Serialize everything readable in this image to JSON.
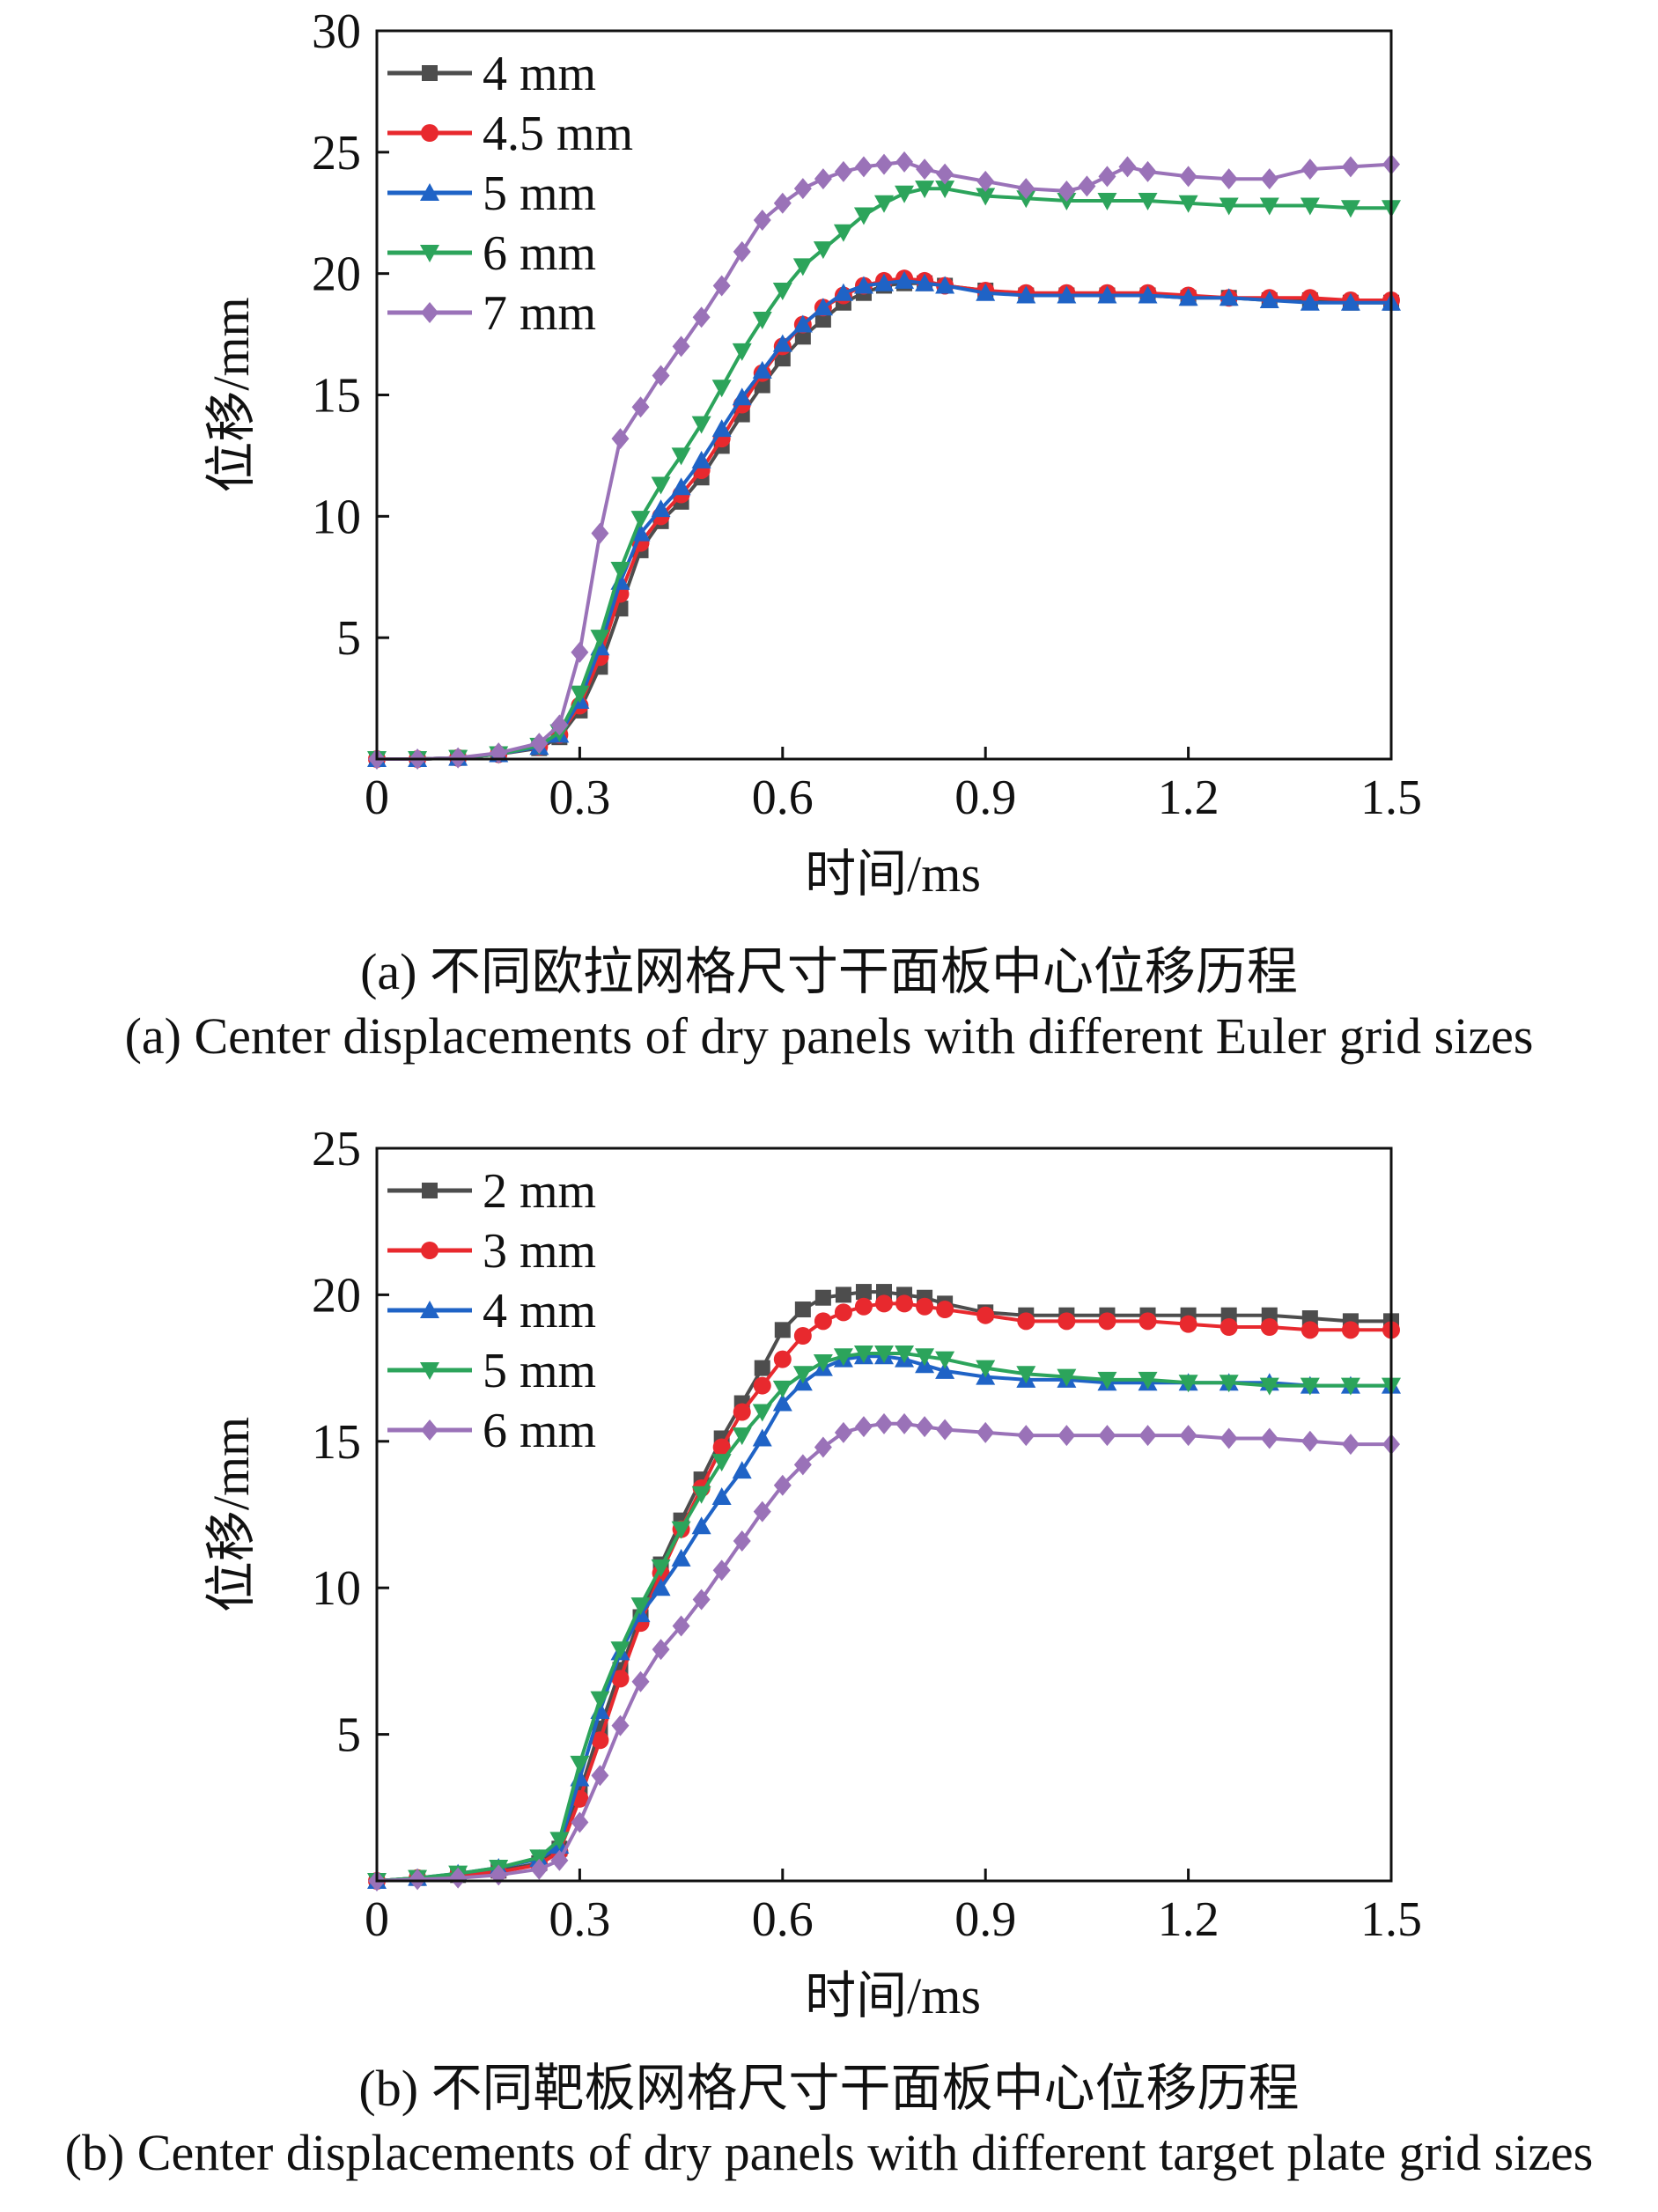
{
  "figures": [
    {
      "caption_cn": "(a) 不同欧拉网格尺寸干面板中心位移历程",
      "caption_en": "(a) Center displacements of dry panels with different Euler grid sizes"
    },
    {
      "caption_cn": "(b) 不同靶板网格尺寸干面板中心位移历程",
      "caption_en": "(b) Center displacements of dry panels with different target plate grid sizes"
    }
  ],
  "chart_data": [
    {
      "type": "line",
      "xlabel": "时间/ms",
      "ylabel": "位移/mm",
      "xlim": [
        0,
        1.5
      ],
      "ylim": [
        0,
        30
      ],
      "xticks": [
        0,
        0.3,
        0.6,
        0.9,
        1.2,
        1.5
      ],
      "xtick_labels": [
        "0",
        "0.3",
        "0.6",
        "0.9",
        "1.2",
        "1.5"
      ],
      "yticks": [
        0,
        5,
        10,
        15,
        20,
        25,
        30
      ],
      "ytick_labels": [
        "",
        "5",
        "10",
        "15",
        "20",
        "25",
        "30"
      ],
      "grid": false,
      "legend_position": "top-left",
      "series": [
        {
          "name": "4 mm",
          "color": "#4d4d4d",
          "marker": "square",
          "x": [
            0.0,
            0.06,
            0.12,
            0.18,
            0.24,
            0.27,
            0.3,
            0.33,
            0.36,
            0.39,
            0.42,
            0.45,
            0.48,
            0.51,
            0.54,
            0.57,
            0.6,
            0.63,
            0.66,
            0.69,
            0.72,
            0.75,
            0.78,
            0.81,
            0.84,
            0.9,
            0.96,
            1.02,
            1.08,
            1.14,
            1.2,
            1.26,
            1.32,
            1.38,
            1.44,
            1.5
          ],
          "y": [
            0.0,
            0.0,
            0.05,
            0.2,
            0.45,
            0.9,
            2.0,
            3.8,
            6.2,
            8.6,
            9.8,
            10.6,
            11.6,
            12.9,
            14.2,
            15.4,
            16.5,
            17.4,
            18.1,
            18.8,
            19.2,
            19.5,
            19.6,
            19.6,
            19.5,
            19.3,
            19.1,
            19.1,
            19.1,
            19.1,
            19.0,
            19.0,
            18.9,
            18.9,
            18.8,
            18.8
          ]
        },
        {
          "name": "4.5 mm",
          "color": "#e8292e",
          "marker": "circle",
          "x": [
            0.0,
            0.06,
            0.12,
            0.18,
            0.24,
            0.27,
            0.3,
            0.33,
            0.36,
            0.39,
            0.42,
            0.45,
            0.48,
            0.51,
            0.54,
            0.57,
            0.6,
            0.63,
            0.66,
            0.69,
            0.72,
            0.75,
            0.78,
            0.81,
            0.84,
            0.9,
            0.96,
            1.02,
            1.08,
            1.14,
            1.2,
            1.26,
            1.32,
            1.38,
            1.44,
            1.5
          ],
          "y": [
            0.0,
            0.0,
            0.05,
            0.2,
            0.5,
            1.0,
            2.2,
            4.2,
            6.8,
            8.9,
            10.0,
            10.9,
            11.9,
            13.2,
            14.6,
            15.9,
            17.0,
            17.9,
            18.6,
            19.1,
            19.5,
            19.7,
            19.8,
            19.7,
            19.5,
            19.3,
            19.2,
            19.2,
            19.2,
            19.2,
            19.1,
            19.0,
            19.0,
            19.0,
            18.9,
            18.9
          ]
        },
        {
          "name": "5 mm",
          "color": "#1f63c6",
          "marker": "triangle-up",
          "x": [
            0.0,
            0.06,
            0.12,
            0.18,
            0.24,
            0.27,
            0.3,
            0.33,
            0.36,
            0.39,
            0.42,
            0.45,
            0.48,
            0.51,
            0.54,
            0.57,
            0.6,
            0.63,
            0.66,
            0.69,
            0.72,
            0.75,
            0.78,
            0.81,
            0.84,
            0.9,
            0.96,
            1.02,
            1.08,
            1.14,
            1.2,
            1.26,
            1.32,
            1.38,
            1.44,
            1.5
          ],
          "y": [
            0.0,
            0.0,
            0.05,
            0.2,
            0.5,
            1.0,
            2.4,
            4.6,
            7.3,
            9.3,
            10.3,
            11.2,
            12.3,
            13.6,
            14.9,
            16.0,
            17.1,
            17.9,
            18.6,
            19.2,
            19.5,
            19.6,
            19.7,
            19.6,
            19.5,
            19.2,
            19.1,
            19.1,
            19.1,
            19.1,
            19.0,
            19.0,
            18.9,
            18.8,
            18.8,
            18.8
          ]
        },
        {
          "name": "6 mm",
          "color": "#2ca45b",
          "marker": "triangle-down",
          "x": [
            0.0,
            0.06,
            0.12,
            0.18,
            0.24,
            0.27,
            0.3,
            0.33,
            0.36,
            0.39,
            0.42,
            0.45,
            0.48,
            0.51,
            0.54,
            0.57,
            0.6,
            0.63,
            0.66,
            0.69,
            0.72,
            0.75,
            0.78,
            0.81,
            0.84,
            0.9,
            0.96,
            1.02,
            1.08,
            1.14,
            1.2,
            1.26,
            1.32,
            1.38,
            1.44,
            1.5
          ],
          "y": [
            0.0,
            0.0,
            0.05,
            0.2,
            0.55,
            1.1,
            2.7,
            5.0,
            7.8,
            9.9,
            11.3,
            12.5,
            13.8,
            15.3,
            16.8,
            18.1,
            19.3,
            20.3,
            21.0,
            21.7,
            22.4,
            22.9,
            23.3,
            23.5,
            23.5,
            23.2,
            23.1,
            23.0,
            23.0,
            23.0,
            22.9,
            22.8,
            22.8,
            22.8,
            22.7,
            22.7
          ]
        },
        {
          "name": "7 mm",
          "color": "#9a72b8",
          "marker": "diamond",
          "x": [
            0.0,
            0.06,
            0.12,
            0.18,
            0.24,
            0.27,
            0.3,
            0.33,
            0.36,
            0.39,
            0.42,
            0.45,
            0.48,
            0.51,
            0.54,
            0.57,
            0.6,
            0.63,
            0.66,
            0.69,
            0.72,
            0.75,
            0.78,
            0.81,
            0.84,
            0.9,
            0.96,
            1.02,
            1.05,
            1.08,
            1.11,
            1.14,
            1.2,
            1.26,
            1.32,
            1.38,
            1.44,
            1.5
          ],
          "y": [
            0.0,
            0.0,
            0.05,
            0.25,
            0.65,
            1.4,
            4.4,
            9.3,
            13.2,
            14.5,
            15.8,
            17.0,
            18.2,
            19.5,
            20.9,
            22.2,
            22.9,
            23.5,
            23.9,
            24.2,
            24.4,
            24.5,
            24.6,
            24.3,
            24.1,
            23.8,
            23.5,
            23.4,
            23.6,
            24.0,
            24.4,
            24.2,
            24.0,
            23.9,
            23.9,
            24.3,
            24.4,
            24.5
          ]
        }
      ]
    },
    {
      "type": "line",
      "xlabel": "时间/ms",
      "ylabel": "位移/mm",
      "xlim": [
        0,
        1.5
      ],
      "ylim": [
        0,
        25
      ],
      "xticks": [
        0,
        0.3,
        0.6,
        0.9,
        1.2,
        1.5
      ],
      "xtick_labels": [
        "0",
        "0.3",
        "0.6",
        "0.9",
        "1.2",
        "1.5"
      ],
      "yticks": [
        0,
        5,
        10,
        15,
        20,
        25
      ],
      "ytick_labels": [
        "",
        "5",
        "10",
        "15",
        "20",
        "25"
      ],
      "grid": false,
      "legend_position": "top-left",
      "series": [
        {
          "name": "2 mm",
          "color": "#4d4d4d",
          "marker": "square",
          "x": [
            0.0,
            0.06,
            0.12,
            0.18,
            0.24,
            0.27,
            0.3,
            0.33,
            0.36,
            0.39,
            0.42,
            0.45,
            0.48,
            0.51,
            0.54,
            0.57,
            0.6,
            0.63,
            0.66,
            0.69,
            0.72,
            0.75,
            0.78,
            0.81,
            0.84,
            0.9,
            0.96,
            1.02,
            1.08,
            1.14,
            1.2,
            1.26,
            1.32,
            1.38,
            1.44,
            1.5
          ],
          "y": [
            0.0,
            0.1,
            0.2,
            0.35,
            0.6,
            1.1,
            3.0,
            5.2,
            7.2,
            9.0,
            10.8,
            12.3,
            13.7,
            15.1,
            16.3,
            17.5,
            18.8,
            19.5,
            19.9,
            20.0,
            20.1,
            20.1,
            20.0,
            19.9,
            19.7,
            19.4,
            19.3,
            19.3,
            19.3,
            19.3,
            19.3,
            19.3,
            19.3,
            19.2,
            19.1,
            19.1
          ]
        },
        {
          "name": "3 mm",
          "color": "#e8292e",
          "marker": "circle",
          "x": [
            0.0,
            0.06,
            0.12,
            0.18,
            0.24,
            0.27,
            0.3,
            0.33,
            0.36,
            0.39,
            0.42,
            0.45,
            0.48,
            0.51,
            0.54,
            0.57,
            0.6,
            0.63,
            0.66,
            0.69,
            0.72,
            0.75,
            0.78,
            0.81,
            0.84,
            0.9,
            0.96,
            1.02,
            1.08,
            1.14,
            1.2,
            1.26,
            1.32,
            1.38,
            1.44,
            1.5
          ],
          "y": [
            0.0,
            0.1,
            0.2,
            0.3,
            0.55,
            1.0,
            2.8,
            4.8,
            6.9,
            8.8,
            10.5,
            12.0,
            13.4,
            14.8,
            16.0,
            16.9,
            17.8,
            18.6,
            19.1,
            19.4,
            19.6,
            19.7,
            19.7,
            19.6,
            19.5,
            19.3,
            19.1,
            19.1,
            19.1,
            19.1,
            19.0,
            18.9,
            18.9,
            18.8,
            18.8,
            18.8
          ]
        },
        {
          "name": "4 mm",
          "color": "#1f63c6",
          "marker": "triangle-up",
          "x": [
            0.0,
            0.06,
            0.12,
            0.18,
            0.24,
            0.27,
            0.3,
            0.33,
            0.36,
            0.39,
            0.42,
            0.45,
            0.48,
            0.51,
            0.54,
            0.57,
            0.6,
            0.63,
            0.66,
            0.69,
            0.72,
            0.75,
            0.78,
            0.81,
            0.84,
            0.9,
            0.96,
            1.02,
            1.08,
            1.14,
            1.2,
            1.26,
            1.32,
            1.38,
            1.44,
            1.5
          ],
          "y": [
            0.0,
            0.1,
            0.25,
            0.45,
            0.75,
            1.2,
            3.5,
            5.8,
            7.8,
            9.1,
            10.0,
            11.0,
            12.1,
            13.1,
            14.0,
            15.1,
            16.3,
            17.0,
            17.5,
            17.8,
            17.9,
            17.9,
            17.8,
            17.6,
            17.4,
            17.2,
            17.1,
            17.1,
            17.0,
            17.0,
            17.0,
            17.0,
            17.0,
            16.9,
            16.9,
            16.9
          ]
        },
        {
          "name": "5 mm",
          "color": "#2ca45b",
          "marker": "triangle-down",
          "x": [
            0.0,
            0.06,
            0.12,
            0.18,
            0.24,
            0.27,
            0.3,
            0.33,
            0.36,
            0.39,
            0.42,
            0.45,
            0.48,
            0.51,
            0.54,
            0.57,
            0.6,
            0.63,
            0.66,
            0.69,
            0.72,
            0.75,
            0.78,
            0.81,
            0.84,
            0.9,
            0.96,
            1.02,
            1.08,
            1.14,
            1.2,
            1.26,
            1.32,
            1.38,
            1.44,
            1.5
          ],
          "y": [
            0.0,
            0.1,
            0.25,
            0.45,
            0.8,
            1.4,
            4.0,
            6.2,
            7.9,
            9.4,
            10.7,
            12.0,
            13.2,
            14.3,
            15.2,
            16.0,
            16.8,
            17.3,
            17.7,
            17.9,
            18.0,
            18.0,
            18.0,
            17.9,
            17.8,
            17.5,
            17.3,
            17.2,
            17.1,
            17.1,
            17.0,
            17.0,
            16.9,
            16.9,
            16.9,
            16.9
          ]
        },
        {
          "name": "6 mm",
          "color": "#9a72b8",
          "marker": "diamond",
          "x": [
            0.0,
            0.06,
            0.12,
            0.18,
            0.24,
            0.27,
            0.3,
            0.33,
            0.36,
            0.39,
            0.42,
            0.45,
            0.48,
            0.51,
            0.54,
            0.57,
            0.6,
            0.63,
            0.66,
            0.69,
            0.72,
            0.75,
            0.78,
            0.81,
            0.84,
            0.9,
            0.96,
            1.02,
            1.08,
            1.14,
            1.2,
            1.26,
            1.32,
            1.38,
            1.44,
            1.5
          ],
          "y": [
            0.0,
            0.05,
            0.1,
            0.2,
            0.4,
            0.7,
            2.0,
            3.6,
            5.3,
            6.8,
            7.9,
            8.7,
            9.6,
            10.6,
            11.6,
            12.6,
            13.5,
            14.2,
            14.8,
            15.3,
            15.5,
            15.6,
            15.6,
            15.5,
            15.4,
            15.3,
            15.2,
            15.2,
            15.2,
            15.2,
            15.2,
            15.1,
            15.1,
            15.0,
            14.9,
            14.9
          ]
        }
      ]
    }
  ]
}
